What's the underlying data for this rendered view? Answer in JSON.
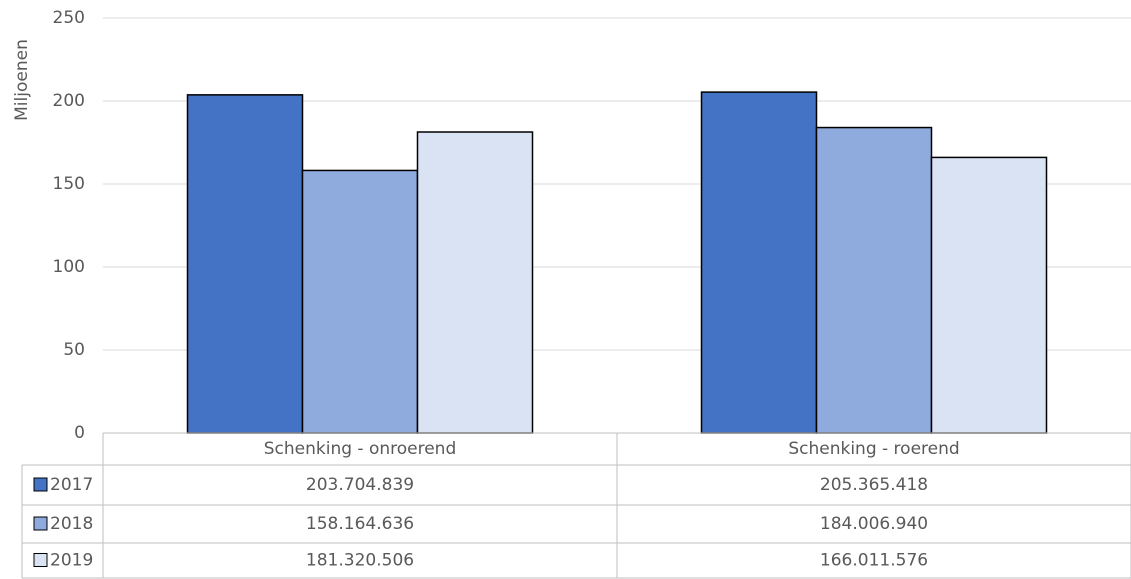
{
  "chart_data": {
    "type": "bar",
    "y_label": "Miljoenen",
    "categories": [
      "Schenking - onroerend",
      "Schenking - roerend"
    ],
    "series": [
      {
        "name": "2017",
        "color": "#4472c4",
        "values": [
          203.704839,
          205.365418
        ],
        "value_labels": [
          "203.704.839",
          "205.365.418"
        ]
      },
      {
        "name": "2018",
        "color": "#8faadc",
        "values": [
          158.164636,
          184.00694
        ],
        "value_labels": [
          "158.164.636",
          "184.006.940"
        ]
      },
      {
        "name": "2019",
        "color": "#dae3f3",
        "values": [
          181.320506,
          166.011576
        ],
        "value_labels": [
          "181.320.506",
          "166.011.576"
        ]
      }
    ],
    "ylim": [
      0,
      250
    ],
    "yticks": [
      0,
      50,
      100,
      150,
      200,
      250
    ],
    "grid": true
  }
}
